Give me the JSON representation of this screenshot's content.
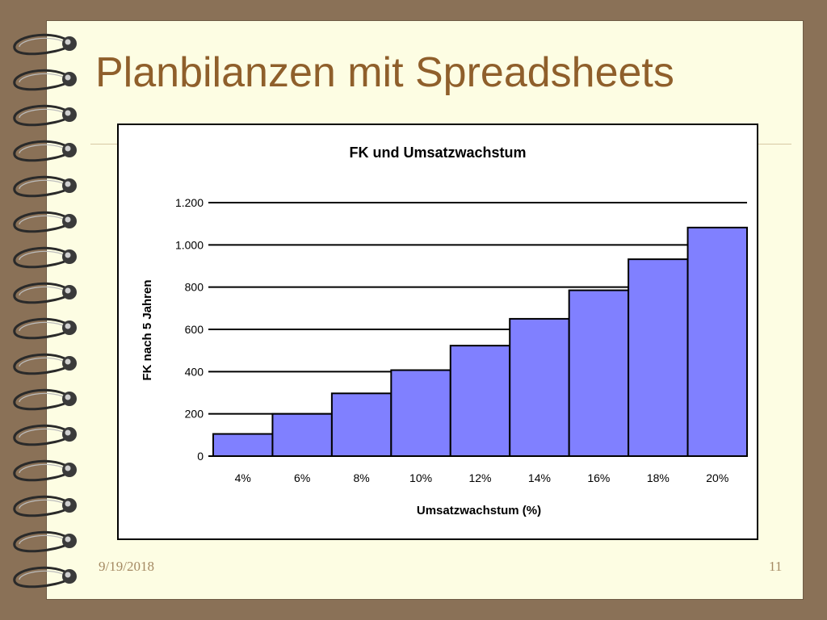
{
  "slide": {
    "title": "Planbilanzen mit Spreadsheets",
    "date": "9/19/2018",
    "page_number": "11"
  },
  "colors": {
    "bar_fill": "#8080ff",
    "title": "#8f5f2b",
    "page_background": "#fdfde3",
    "frame": "#8a7157"
  },
  "chart_data": {
    "type": "bar",
    "title": "FK und Umsatzwachstum",
    "xlabel": "Umsatzwachstum (%)",
    "ylabel": "FK nach 5 Jahren",
    "categories": [
      "4%",
      "6%",
      "8%",
      "10%",
      "12%",
      "14%",
      "16%",
      "18%",
      "20%"
    ],
    "values": [
      105,
      200,
      297,
      407,
      523,
      650,
      785,
      932,
      1082
    ],
    "ylim": [
      0,
      1200
    ],
    "yticks": [
      0,
      200,
      400,
      600,
      800,
      1000,
      1200
    ],
    "ytick_labels": [
      "0",
      "200",
      "400",
      "600",
      "800",
      "1.000",
      "1.200"
    ],
    "grid": true,
    "legend": "none"
  }
}
